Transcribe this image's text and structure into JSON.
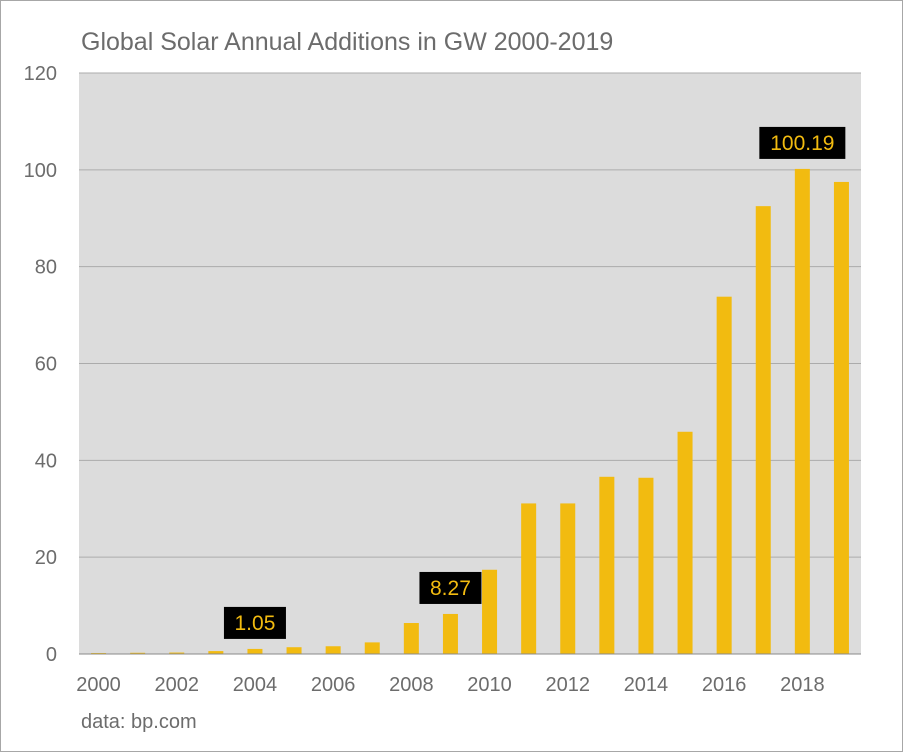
{
  "chart_data": {
    "type": "bar",
    "title": "Global Solar Annual Additions in GW 2000-2019",
    "source": "data: bp.com",
    "xlabel": "",
    "ylabel": "",
    "ylim": [
      0,
      120
    ],
    "yticks": [
      0,
      20,
      40,
      60,
      80,
      100,
      120
    ],
    "grid": true,
    "bar_color": "#f2bb10",
    "plot_background": "#dcdcdc",
    "categories": [
      "2000",
      "2001",
      "2002",
      "2003",
      "2004",
      "2005",
      "2006",
      "2007",
      "2008",
      "2009",
      "2010",
      "2011",
      "2012",
      "2013",
      "2014",
      "2015",
      "2016",
      "2017",
      "2018",
      "2019"
    ],
    "x_tick_labels": [
      "2000",
      "2002",
      "2004",
      "2006",
      "2008",
      "2010",
      "2012",
      "2014",
      "2016",
      "2018"
    ],
    "values": [
      0.2,
      0.25,
      0.3,
      0.6,
      1.05,
      1.4,
      1.6,
      2.4,
      6.4,
      8.27,
      17.4,
      31.1,
      31.1,
      36.6,
      36.4,
      45.9,
      73.8,
      92.5,
      100.19,
      97.5
    ],
    "annotations": [
      {
        "category": "2004",
        "label": "1.05"
      },
      {
        "category": "2009",
        "label": "8.27"
      },
      {
        "category": "2018",
        "label": "100.19"
      }
    ]
  }
}
